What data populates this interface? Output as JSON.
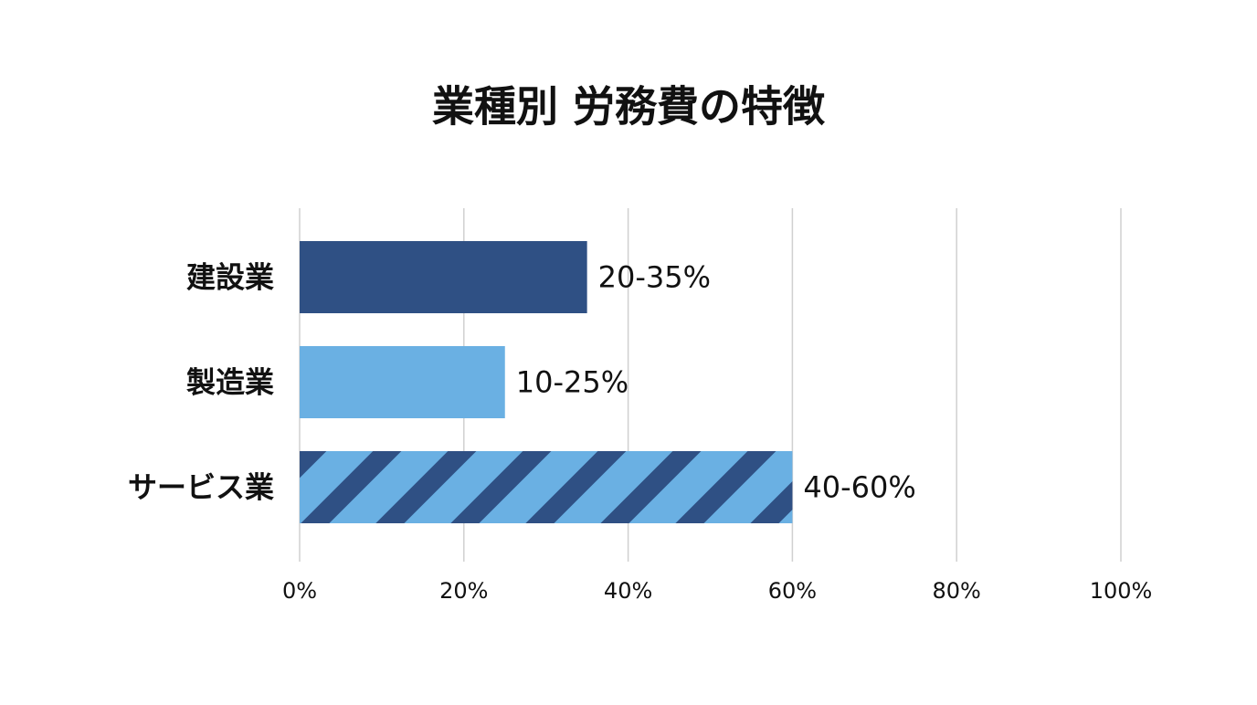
{
  "chart_data": {
    "type": "hbar",
    "title": "業種別 労務費の特徴",
    "categories": [
      "建設業",
      "製造業",
      "サービス業"
    ],
    "values": [
      35,
      25,
      60
    ],
    "value_labels": [
      "20-35%",
      "10-25%",
      "40-60%"
    ],
    "colors": [
      "#2f5084",
      "#6ab0e3",
      "#6ab0e3"
    ],
    "hatched": [
      false,
      false,
      true
    ],
    "hatch_color": "#2f5084",
    "xlim": [
      0,
      100
    ],
    "xticks": [
      {
        "value": 0,
        "label": "0%"
      },
      {
        "value": 20,
        "label": "20%"
      },
      {
        "value": 40,
        "label": "40%"
      },
      {
        "value": 60,
        "label": "60%"
      },
      {
        "value": 80,
        "label": "80%"
      },
      {
        "value": 100,
        "label": "100%"
      }
    ],
    "grid": true
  }
}
